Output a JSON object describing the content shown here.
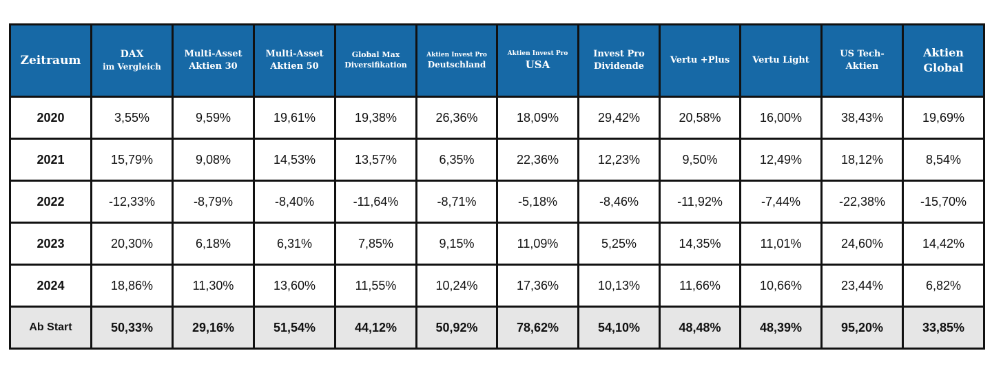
{
  "header": {
    "period": "Zeitraum",
    "columns": [
      {
        "l1": "DAX",
        "l2": "im Vergleich"
      },
      {
        "l1": "Multi-Asset",
        "l2": "Aktien 30"
      },
      {
        "l1": "Multi-Asset",
        "l2": "Aktien 50"
      },
      {
        "l1": "Global Max",
        "l2": "Diversifikation"
      },
      {
        "l1": "Aktien Invest Pro",
        "l2": "Deutschland"
      },
      {
        "l1": "Aktien Invest Pro",
        "l2": "USA"
      },
      {
        "l1": "Invest Pro",
        "l2": "Dividende"
      },
      {
        "l1": "Vertu +Plus",
        "l2": ""
      },
      {
        "l1": "Vertu Light",
        "l2": ""
      },
      {
        "l1": "US Tech-",
        "l2": "Aktien"
      },
      {
        "l1": "Aktien",
        "l2": "Global"
      }
    ]
  },
  "rows": [
    {
      "period": "2020",
      "values": [
        "3,55%",
        "9,59%",
        "19,61%",
        "19,38%",
        "26,36%",
        "18,09%",
        "29,42%",
        "20,58%",
        "16,00%",
        "38,43%",
        "19,69%"
      ]
    },
    {
      "period": "2021",
      "values": [
        "15,79%",
        "9,08%",
        "14,53%",
        "13,57%",
        "6,35%",
        "22,36%",
        "12,23%",
        "9,50%",
        "12,49%",
        "18,12%",
        "8,54%"
      ]
    },
    {
      "period": "2022",
      "values": [
        "-12,33%",
        "-8,79%",
        "-8,40%",
        "-11,64%",
        "-8,71%",
        "-5,18%",
        "-8,46%",
        "-11,92%",
        "-7,44%",
        "-22,38%",
        "-15,70%"
      ]
    },
    {
      "period": "2023",
      "values": [
        "20,30%",
        "6,18%",
        "6,31%",
        "7,85%",
        "9,15%",
        "11,09%",
        "5,25%",
        "14,35%",
        "11,01%",
        "24,60%",
        "14,42%"
      ]
    },
    {
      "period": "2024",
      "values": [
        "18,86%",
        "11,30%",
        "13,60%",
        "11,55%",
        "10,24%",
        "17,36%",
        "10,13%",
        "11,66%",
        "10,66%",
        "23,44%",
        "6,82%"
      ]
    },
    {
      "period": "Ab Start",
      "values": [
        "50,33%",
        "29,16%",
        "51,54%",
        "44,12%",
        "50,92%",
        "78,62%",
        "54,10%",
        "48,48%",
        "48,39%",
        "95,20%",
        "33,85%"
      ]
    }
  ],
  "colors": {
    "header_bg": "#1769a6",
    "header_text": "#ffffff",
    "border": "#111111",
    "total_row_bg": "#e6e6e6"
  }
}
